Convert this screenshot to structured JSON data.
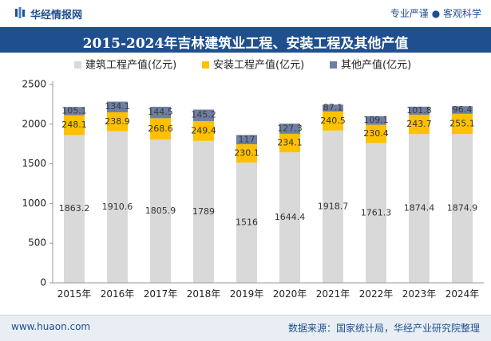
{
  "header": {
    "brand": "华经情报网",
    "tagline": "专业严谨 ● 客观科学"
  },
  "footer": {
    "website": "www.huaon.com",
    "source": "数据来源：国家统计局，华经产业研究院整理"
  },
  "colors": {
    "construction": "#d9d9d9",
    "installation": "#ffc000",
    "other": "#6e7fa3",
    "title_bg": "#1f4f8f"
  },
  "chart_data": {
    "type": "bar",
    "stacked": true,
    "title": "2015-2024年吉林建筑业工程、安装工程及其他产值",
    "categories": [
      "2015年",
      "2016年",
      "2017年",
      "2018年",
      "2019年",
      "2020年",
      "2021年",
      "2022年",
      "2023年",
      "2024年"
    ],
    "series": [
      {
        "name": "建筑工程产值(亿元)",
        "values": [
          1863.2,
          1910.6,
          1805.9,
          1789,
          1516,
          1644.4,
          1918.7,
          1761.3,
          1874.4,
          1874.9
        ],
        "labels": [
          "1863.2",
          "1910.6",
          "1805.9",
          "1789",
          "1516",
          "1644.4",
          "1918.7",
          "1761.3",
          "1874.4",
          "1874.9"
        ]
      },
      {
        "name": "安装工程产值(亿元)",
        "values": [
          248.1,
          238.9,
          268.6,
          249.4,
          230.1,
          234.1,
          240.5,
          230.4,
          243.7,
          255.1
        ],
        "labels": [
          "248.1",
          "238.9",
          "268.6",
          "249.4",
          "230.1",
          "234.1",
          "240.5",
          "230.4",
          "243.7",
          "255.1"
        ]
      },
      {
        "name": "其他产值(亿元)",
        "values": [
          105.1,
          134.1,
          144.5,
          145.2,
          117,
          127.3,
          87.1,
          109.1,
          101.8,
          96.4
        ],
        "labels": [
          "105.1",
          "134.1",
          "144.5",
          "145.2",
          "117",
          "127.3",
          "87.1",
          "109.1",
          "101.8",
          "96.4"
        ]
      }
    ],
    "yticks": [
      "0",
      "500",
      "1000",
      "1500",
      "2000",
      "2500"
    ],
    "ylim": [
      0,
      2500
    ],
    "xlabel": "",
    "ylabel": "",
    "legend_position": "top",
    "grid": false
  }
}
